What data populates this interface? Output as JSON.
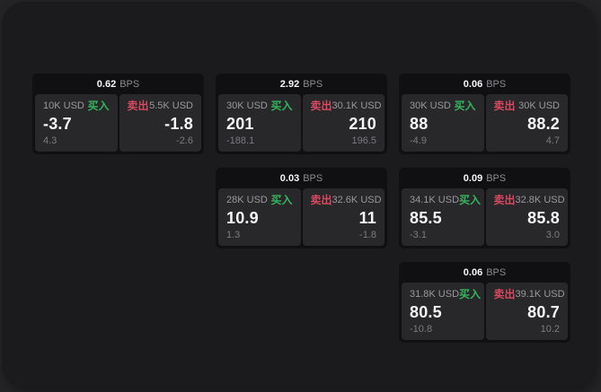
{
  "labels": {
    "bps_unit": "BPS",
    "buy": "买入",
    "sell": "卖出"
  },
  "colors": {
    "outer_background": "#242427",
    "window_background": "#1b1b1e",
    "card_background": "#101013",
    "cell_background": "#28282b",
    "text_primary": "#f5f5f6",
    "text_secondary": "#98989d",
    "text_dim": "#7a7a80",
    "buy_green": "#34b45e",
    "sell_red": "#d8485f"
  },
  "cards": [
    {
      "bps": "0.62",
      "buy": {
        "amount": "10K USD",
        "price": "-3.7",
        "delta": "4.3"
      },
      "sell": {
        "amount": "5.5K USD",
        "price": "-1.8",
        "delta": "-2.6"
      }
    },
    {
      "bps": "2.92",
      "buy": {
        "amount": "30K USD",
        "price": "201",
        "delta": "-188.1"
      },
      "sell": {
        "amount": "30.1K USD",
        "price": "210",
        "delta": "196.5"
      }
    },
    {
      "bps": "0.06",
      "buy": {
        "amount": "30K USD",
        "price": "88",
        "delta": "-4.9"
      },
      "sell": {
        "amount": "30K USD",
        "price": "88.2",
        "delta": "4.7"
      }
    },
    {
      "bps": "0.03",
      "buy": {
        "amount": "28K USD",
        "price": "10.9",
        "delta": "1.3"
      },
      "sell": {
        "amount": "32.6K USD",
        "price": "11",
        "delta": "-1.8"
      }
    },
    {
      "bps": "0.09",
      "buy": {
        "amount": "34.1K USD",
        "price": "85.5",
        "delta": "-3.1"
      },
      "sell": {
        "amount": "32.8K USD",
        "price": "85.8",
        "delta": "3.0"
      }
    },
    {
      "bps": "0.06",
      "buy": {
        "amount": "31.8K USD",
        "price": "80.5",
        "delta": "-10.8"
      },
      "sell": {
        "amount": "39.1K USD",
        "price": "80.7",
        "delta": "10.2"
      }
    }
  ]
}
